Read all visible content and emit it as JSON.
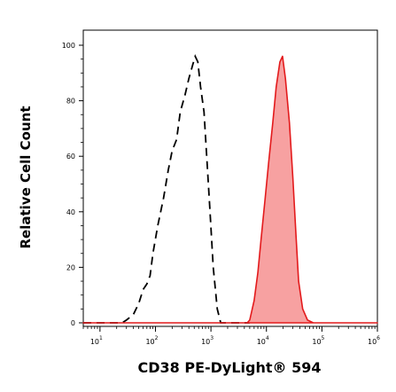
{
  "chart_data": {
    "type": "area",
    "xlabel": "CD38 PE-DyLight® 594",
    "ylabel": "Relative Cell Count",
    "x_scale": "log",
    "xlim": [
      5,
      1000000
    ],
    "ylim": [
      0,
      100
    ],
    "y_ticks": [
      0,
      20,
      40,
      60,
      80,
      100
    ],
    "x_ticks": [
      {
        "value": 10,
        "base": "10",
        "exp": "1"
      },
      {
        "value": 100,
        "base": "10",
        "exp": "2"
      },
      {
        "value": 1000,
        "base": "10",
        "exp": "3"
      },
      {
        "value": 10000,
        "base": "10",
        "exp": "4"
      },
      {
        "value": 100000,
        "base": "10",
        "exp": "5"
      },
      {
        "value": 1000000,
        "base": "10",
        "exp": "6"
      }
    ],
    "grid": false,
    "series": [
      {
        "style": "dashed-line",
        "color": "#000000",
        "points": [
          [
            5,
            0
          ],
          [
            25,
            0
          ],
          [
            30,
            1
          ],
          [
            40,
            3
          ],
          [
            50,
            7
          ],
          [
            60,
            12
          ],
          [
            70,
            14
          ],
          [
            80,
            17
          ],
          [
            90,
            25
          ],
          [
            110,
            35
          ],
          [
            140,
            45
          ],
          [
            170,
            55
          ],
          [
            200,
            62
          ],
          [
            240,
            66
          ],
          [
            280,
            76
          ],
          [
            340,
            82
          ],
          [
            400,
            88
          ],
          [
            470,
            93
          ],
          [
            520,
            96
          ],
          [
            580,
            94
          ],
          [
            650,
            85
          ],
          [
            750,
            76
          ],
          [
            850,
            58
          ],
          [
            950,
            42
          ],
          [
            1100,
            20
          ],
          [
            1300,
            5
          ],
          [
            1500,
            0
          ],
          [
            5000,
            0
          ]
        ]
      },
      {
        "style": "filled",
        "color": "#e31a1c",
        "fill": "#f7a1a1",
        "points": [
          [
            5,
            0
          ],
          [
            4500,
            0
          ],
          [
            5000,
            1
          ],
          [
            6000,
            8
          ],
          [
            7000,
            18
          ],
          [
            8000,
            30
          ],
          [
            9500,
            45
          ],
          [
            11000,
            58
          ],
          [
            13000,
            72
          ],
          [
            15000,
            85
          ],
          [
            17500,
            94
          ],
          [
            19500,
            96
          ],
          [
            22000,
            88
          ],
          [
            26000,
            72
          ],
          [
            30000,
            52
          ],
          [
            34000,
            32
          ],
          [
            38000,
            15
          ],
          [
            45000,
            5
          ],
          [
            55000,
            1
          ],
          [
            70000,
            0
          ],
          [
            1000000,
            0
          ]
        ]
      }
    ]
  }
}
